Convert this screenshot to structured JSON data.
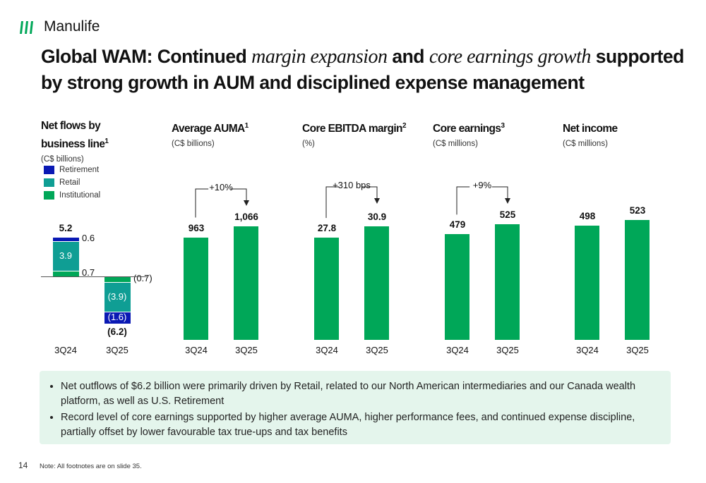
{
  "brand": {
    "name": "Manulife",
    "color": "#00A758"
  },
  "title": {
    "p1": "Global WAM: Continued ",
    "p2": "margin expansion",
    "p3": " and ",
    "p4": "core earnings growth",
    "p5": " supported by strong growth in AUM and disciplined expense management"
  },
  "colors": {
    "retirement": "#0a19b4",
    "retail": "#0f9e94",
    "institutional": "#00a758",
    "bar": "#00a758"
  },
  "net_flows": {
    "title": "Net flows by business line",
    "sup": "1",
    "unit": "(C$ billions)",
    "legend": [
      "Retirement",
      "Retail",
      "Institutional"
    ],
    "periods": [
      {
        "label": "3Q24",
        "total": "5.2",
        "retirement": 0.6,
        "retail": 3.9,
        "institutional": 0.7,
        "retirement_label": "0.6",
        "retail_label": "3.9",
        "institutional_label": "0.7"
      },
      {
        "label": "3Q25",
        "total": "(6.2)",
        "retirement": -1.6,
        "retail": -3.9,
        "institutional": -0.7,
        "retirement_label": "(1.6)",
        "retail_label": "(3.9)",
        "institutional_label": "(0.7)"
      }
    ]
  },
  "chart_data": [
    {
      "type": "bar",
      "title": "Average AUMA",
      "sup": "1",
      "unit": "(C$ billions)",
      "categories": [
        "3Q24",
        "3Q25"
      ],
      "values": [
        963,
        1066
      ],
      "labels": [
        "963",
        "1,066"
      ],
      "growth": "+10%"
    },
    {
      "type": "bar",
      "title": "Core EBITDA margin",
      "sup": "2",
      "unit": "(%)",
      "categories": [
        "3Q24",
        "3Q25"
      ],
      "values": [
        27.8,
        30.9
      ],
      "labels": [
        "27.8",
        "30.9"
      ],
      "growth": "+310 bps"
    },
    {
      "type": "bar",
      "title": "Core earnings",
      "sup": "3",
      "unit": "(C$ millions)",
      "categories": [
        "3Q24",
        "3Q25"
      ],
      "values": [
        479,
        525
      ],
      "labels": [
        "479",
        "525"
      ],
      "growth": "+9%"
    },
    {
      "type": "bar",
      "title": "Net income",
      "sup": "",
      "unit": "(C$ millions)",
      "categories": [
        "3Q24",
        "3Q25"
      ],
      "values": [
        498,
        523
      ],
      "labels": [
        "498",
        "523"
      ],
      "growth": null
    }
  ],
  "bullets": [
    "Net outflows of $6.2 billion were primarily driven by Retail, related to our North American intermediaries and our Canada wealth platform, as well as U.S. Retirement",
    "Record level of core earnings supported by higher average AUMA, higher performance fees, and continued expense discipline, partially offset by lower favourable tax true-ups and tax benefits"
  ],
  "footer": {
    "page": "14",
    "note": "Note: All footnotes are on slide 35."
  }
}
